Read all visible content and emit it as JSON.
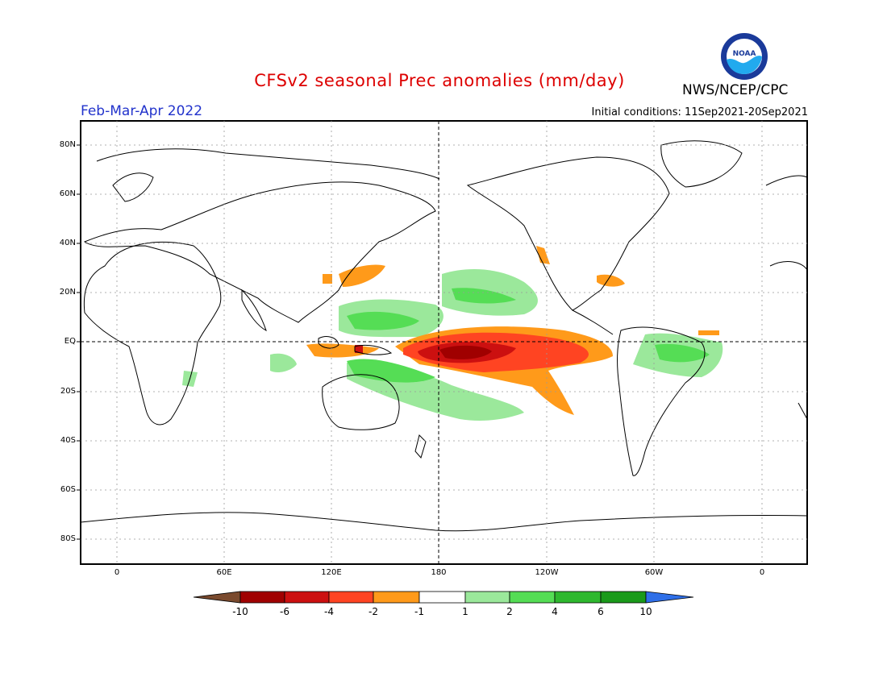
{
  "header": {
    "title": "CFSv2 seasonal Prec anomalies (mm/day)",
    "org": "NWS/NCEP/CPC",
    "season": "Feb-Mar-Apr 2022",
    "initial_conditions": "Initial conditions: 11Sep2021-20Sep2021",
    "logo_text": "NOAA"
  },
  "map": {
    "lat_labels": [
      "80N",
      "60N",
      "40N",
      "20N",
      "EQ",
      "20S",
      "40S",
      "60S",
      "80S"
    ],
    "lon_labels": [
      "0",
      "60E",
      "120E",
      "180",
      "120W",
      "60W",
      "0"
    ]
  },
  "colorbar": {
    "labels": [
      "-10",
      "-6",
      "-4",
      "-2",
      "-1",
      "1",
      "2",
      "4",
      "6",
      "10"
    ],
    "colors": [
      "#7a4a2e",
      "#a00000",
      "#cc1010",
      "#ff4422",
      "#ff9a1a",
      "#ffffff",
      "#9be89b",
      "#55dd55",
      "#2eb82e",
      "#1a9a1a",
      "#2f6fe8"
    ]
  }
}
